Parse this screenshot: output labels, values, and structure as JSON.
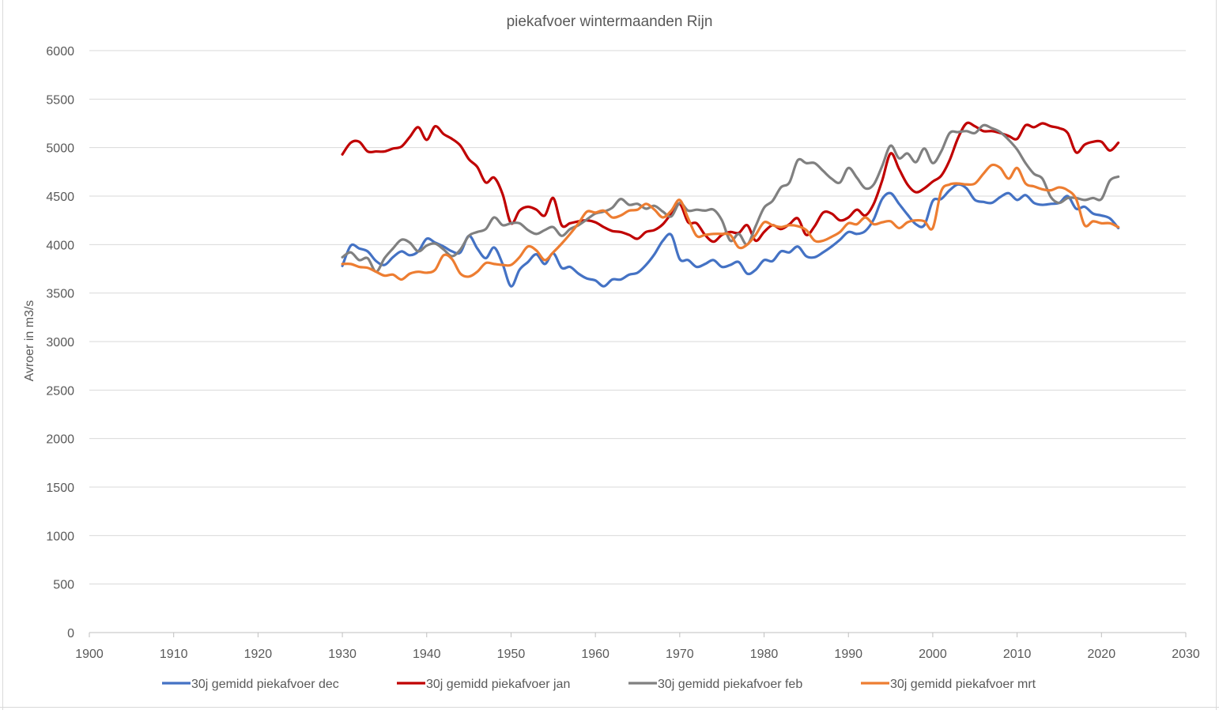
{
  "chart_data": {
    "type": "line",
    "title": "piekafvoer wintermaanden Rijn",
    "xlabel": "",
    "ylabel": "Avroer in m3/s",
    "xlim": [
      1900,
      2030
    ],
    "ylim": [
      0,
      6000
    ],
    "x_ticks": [
      "1900",
      "1910",
      "1920",
      "1930",
      "1940",
      "1950",
      "1960",
      "1970",
      "1980",
      "1990",
      "2000",
      "2010",
      "2020",
      "2030"
    ],
    "y_ticks": [
      "0",
      "500",
      "1000",
      "1500",
      "2000",
      "2500",
      "3000",
      "3500",
      "4000",
      "4500",
      "5000",
      "5500",
      "6000"
    ],
    "grid": "horizontal",
    "legend_position": "bottom",
    "series": [
      {
        "name": "30j gemidd piekafvoer dec",
        "color": "#4472C4",
        "x": [
          1930,
          1931,
          1932,
          1933,
          1934,
          1935,
          1936,
          1937,
          1938,
          1939,
          1940,
          1941,
          1942,
          1943,
          1944,
          1945,
          1946,
          1947,
          1948,
          1949,
          1950,
          1951,
          1952,
          1953,
          1954,
          1955,
          1956,
          1957,
          1958,
          1959,
          1960,
          1961,
          1962,
          1963,
          1964,
          1965,
          1966,
          1967,
          1968,
          1969,
          1970,
          1971,
          1972,
          1973,
          1974,
          1975,
          1976,
          1977,
          1978,
          1979,
          1980,
          1981,
          1982,
          1983,
          1984,
          1985,
          1986,
          1987,
          1988,
          1989,
          1990,
          1991,
          1992,
          1993,
          1994,
          1995,
          1996,
          1997,
          1998,
          1999,
          2000,
          2001,
          2002,
          2003,
          2004,
          2005,
          2006,
          2007,
          2008,
          2009,
          2010,
          2011,
          2012,
          2013,
          2014,
          2015,
          2016,
          2017,
          2018,
          2019,
          2020,
          2021,
          2022
        ],
        "y": [
          3780,
          3990,
          3960,
          3930,
          3830,
          3790,
          3870,
          3930,
          3890,
          3930,
          4060,
          4020,
          3980,
          3930,
          3920,
          4090,
          3960,
          3860,
          3970,
          3800,
          3570,
          3740,
          3820,
          3900,
          3800,
          3910,
          3760,
          3770,
          3700,
          3650,
          3630,
          3570,
          3640,
          3640,
          3690,
          3710,
          3790,
          3900,
          4040,
          4100,
          3850,
          3840,
          3770,
          3800,
          3840,
          3770,
          3790,
          3820,
          3700,
          3740,
          3840,
          3830,
          3930,
          3920,
          3980,
          3880,
          3870,
          3920,
          3980,
          4050,
          4130,
          4110,
          4140,
          4260,
          4470,
          4530,
          4420,
          4310,
          4210,
          4200,
          4450,
          4470,
          4560,
          4620,
          4580,
          4460,
          4440,
          4430,
          4490,
          4530,
          4460,
          4510,
          4430,
          4410,
          4420,
          4430,
          4500,
          4370,
          4390,
          4320,
          4300,
          4270,
          4170
        ]
      },
      {
        "name": "30j gemidd piekafvoer jan",
        "color": "#C00000",
        "x": [
          1930,
          1931,
          1932,
          1933,
          1934,
          1935,
          1936,
          1937,
          1938,
          1939,
          1940,
          1941,
          1942,
          1943,
          1944,
          1945,
          1946,
          1947,
          1948,
          1949,
          1950,
          1951,
          1952,
          1953,
          1954,
          1955,
          1956,
          1957,
          1958,
          1959,
          1960,
          1961,
          1962,
          1963,
          1964,
          1965,
          1966,
          1967,
          1968,
          1969,
          1970,
          1971,
          1972,
          1973,
          1974,
          1975,
          1976,
          1977,
          1978,
          1979,
          1980,
          1981,
          1982,
          1983,
          1984,
          1985,
          1986,
          1987,
          1988,
          1989,
          1990,
          1991,
          1992,
          1993,
          1994,
          1995,
          1996,
          1997,
          1998,
          1999,
          2000,
          2001,
          2002,
          2003,
          2004,
          2005,
          2006,
          2007,
          2008,
          2009,
          2010,
          2011,
          2012,
          2013,
          2014,
          2015,
          2016,
          2017,
          2018,
          2019,
          2020,
          2021,
          2022
        ],
        "y": [
          4930,
          5050,
          5060,
          4960,
          4960,
          4960,
          4990,
          5010,
          5110,
          5210,
          5080,
          5220,
          5140,
          5090,
          5020,
          4880,
          4800,
          4640,
          4690,
          4520,
          4220,
          4350,
          4390,
          4360,
          4300,
          4480,
          4200,
          4220,
          4240,
          4250,
          4230,
          4180,
          4140,
          4130,
          4100,
          4060,
          4130,
          4150,
          4210,
          4320,
          4420,
          4230,
          4220,
          4100,
          4030,
          4100,
          4130,
          4120,
          4200,
          4040,
          4130,
          4200,
          4160,
          4210,
          4270,
          4100,
          4190,
          4330,
          4320,
          4250,
          4280,
          4360,
          4300,
          4420,
          4660,
          4940,
          4780,
          4620,
          4540,
          4580,
          4650,
          4710,
          4870,
          5100,
          5250,
          5220,
          5170,
          5170,
          5150,
          5120,
          5090,
          5230,
          5210,
          5250,
          5220,
          5200,
          5150,
          4950,
          5030,
          5060,
          5060,
          4970,
          5050
        ]
      },
      {
        "name": "30j gemidd piekafvoer feb",
        "color": "#808080",
        "x": [
          1930,
          1931,
          1932,
          1933,
          1934,
          1935,
          1936,
          1937,
          1938,
          1939,
          1940,
          1941,
          1942,
          1943,
          1944,
          1945,
          1946,
          1947,
          1948,
          1949,
          1950,
          1951,
          1952,
          1953,
          1954,
          1955,
          1956,
          1957,
          1958,
          1959,
          1960,
          1961,
          1962,
          1963,
          1964,
          1965,
          1966,
          1967,
          1968,
          1969,
          1970,
          1971,
          1972,
          1973,
          1974,
          1975,
          1976,
          1977,
          1978,
          1979,
          1980,
          1981,
          1982,
          1983,
          1984,
          1985,
          1986,
          1987,
          1988,
          1989,
          1990,
          1991,
          1992,
          1993,
          1994,
          1995,
          1996,
          1997,
          1998,
          1999,
          2000,
          2001,
          2002,
          2003,
          2004,
          2005,
          2006,
          2007,
          2008,
          2009,
          2010,
          2011,
          2012,
          2013,
          2014,
          2015,
          2016,
          2017,
          2018,
          2019,
          2020,
          2021,
          2022
        ],
        "y": [
          3870,
          3920,
          3840,
          3860,
          3720,
          3860,
          3960,
          4050,
          4020,
          3930,
          3990,
          4010,
          3950,
          3880,
          3950,
          4090,
          4130,
          4160,
          4280,
          4200,
          4220,
          4220,
          4150,
          4110,
          4150,
          4180,
          4090,
          4160,
          4200,
          4260,
          4320,
          4340,
          4380,
          4470,
          4410,
          4420,
          4370,
          4400,
          4340,
          4290,
          4430,
          4350,
          4360,
          4350,
          4360,
          4250,
          4040,
          4110,
          4000,
          4190,
          4380,
          4450,
          4590,
          4640,
          4870,
          4840,
          4840,
          4760,
          4680,
          4640,
          4790,
          4690,
          4580,
          4620,
          4810,
          5020,
          4890,
          4940,
          4850,
          4990,
          4840,
          4960,
          5150,
          5160,
          5170,
          5150,
          5230,
          5200,
          5160,
          5080,
          4980,
          4840,
          4730,
          4680,
          4490,
          4430,
          4480,
          4480,
          4460,
          4480,
          4470,
          4660,
          4700
        ]
      },
      {
        "name": "30j gemidd piekafvoer mrt",
        "color": "#ED7D31",
        "x": [
          1930,
          1931,
          1932,
          1933,
          1934,
          1935,
          1936,
          1937,
          1938,
          1939,
          1940,
          1941,
          1942,
          1943,
          1944,
          1945,
          1946,
          1947,
          1948,
          1949,
          1950,
          1951,
          1952,
          1953,
          1954,
          1955,
          1956,
          1957,
          1958,
          1959,
          1960,
          1961,
          1962,
          1963,
          1964,
          1965,
          1966,
          1967,
          1968,
          1969,
          1970,
          1971,
          1972,
          1973,
          1974,
          1975,
          1976,
          1977,
          1978,
          1979,
          1980,
          1981,
          1982,
          1983,
          1984,
          1985,
          1986,
          1987,
          1988,
          1989,
          1990,
          1991,
          1992,
          1993,
          1994,
          1995,
          1996,
          1997,
          1998,
          1999,
          2000,
          2001,
          2002,
          2003,
          2004,
          2005,
          2006,
          2007,
          2008,
          2009,
          2010,
          2011,
          2012,
          2013,
          2014,
          2015,
          2016,
          2017,
          2018,
          2019,
          2020,
          2021,
          2022
        ],
        "y": [
          3800,
          3800,
          3770,
          3760,
          3720,
          3680,
          3690,
          3640,
          3700,
          3720,
          3710,
          3740,
          3890,
          3850,
          3700,
          3670,
          3720,
          3810,
          3800,
          3790,
          3790,
          3870,
          3980,
          3940,
          3840,
          3920,
          4010,
          4110,
          4220,
          4340,
          4330,
          4350,
          4280,
          4300,
          4350,
          4360,
          4420,
          4360,
          4280,
          4350,
          4460,
          4270,
          4090,
          4100,
          4110,
          4110,
          4100,
          3970,
          4000,
          4100,
          4230,
          4200,
          4180,
          4200,
          4190,
          4150,
          4040,
          4040,
          4080,
          4130,
          4220,
          4210,
          4280,
          4210,
          4230,
          4240,
          4170,
          4230,
          4250,
          4240,
          4170,
          4550,
          4620,
          4630,
          4620,
          4630,
          4730,
          4820,
          4790,
          4680,
          4790,
          4630,
          4600,
          4570,
          4560,
          4590,
          4560,
          4470,
          4200,
          4240,
          4220,
          4220,
          4180
        ]
      }
    ]
  }
}
